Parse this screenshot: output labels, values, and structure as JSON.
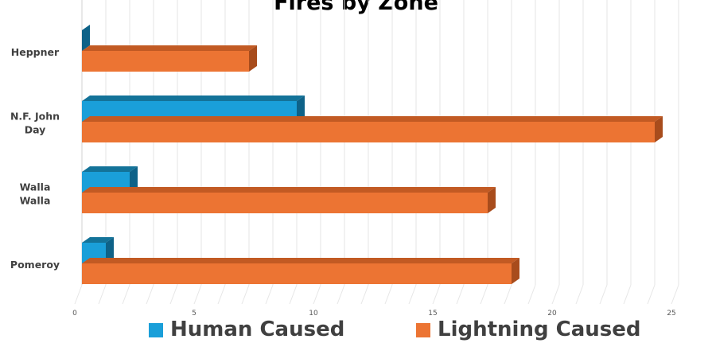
{
  "chart_data": {
    "type": "bar",
    "orientation": "horizontal",
    "title": "Fires by Zone",
    "categories": [
      "Heppner",
      "N.F. John\nDay",
      "Walla\nWalla",
      "Pomeroy"
    ],
    "series": [
      {
        "name": "Human Caused",
        "values": [
          0,
          9,
          2,
          1
        ],
        "color": "#1a9fd9",
        "top_color": "#137399",
        "side_color": "#0e6288"
      },
      {
        "name": "Lightning Caused",
        "values": [
          7,
          24,
          17,
          18
        ],
        "color": "#ec7433",
        "top_color": "#c25a23",
        "side_color": "#a84c1c"
      }
    ],
    "xlim": [
      0,
      25
    ],
    "x_ticks": [
      0,
      5,
      10,
      15,
      20,
      25
    ],
    "xlabel": "",
    "ylabel": "",
    "grid": true,
    "legend_position": "bottom"
  }
}
